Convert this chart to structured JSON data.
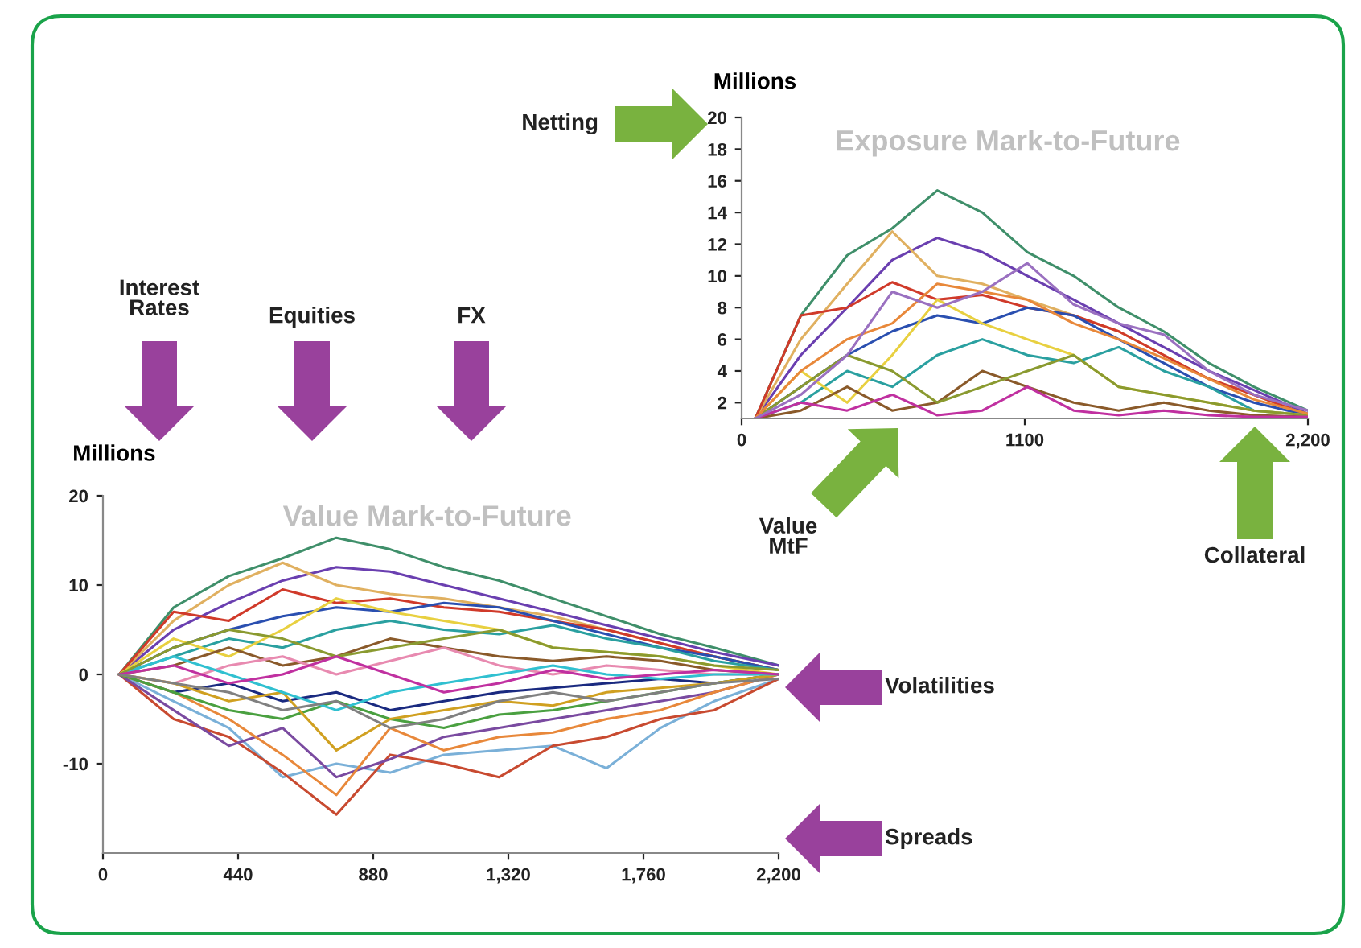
{
  "chart_data": [
    {
      "type": "line",
      "title": "Value Mark-to-Future",
      "ylabel": "Millions",
      "x": [
        53,
        230,
        410,
        585,
        760,
        935,
        1110,
        1290,
        1465,
        1640,
        1815,
        1990,
        2200
      ],
      "xlim": [
        0,
        2200
      ],
      "ylim": [
        -20,
        20
      ],
      "xticks": [
        0,
        440,
        880,
        {
          "value": 1320,
          "label": "1,320"
        },
        {
          "value": 1760,
          "label": "1,760"
        },
        {
          "value": 2200,
          "label": "2,200"
        }
      ],
      "yticks": [
        {
          "value": -10,
          "label": "-10"
        },
        0,
        10,
        20
      ],
      "annotations": [
        "Interest\nRates",
        "Equities",
        "FX",
        "Volatilities",
        "Spreads"
      ],
      "series": [
        {
          "color": "#3f8f6a",
          "values": [
            0,
            7.5,
            11,
            13,
            15.3,
            14,
            12,
            10.5,
            8.5,
            6.5,
            4.5,
            3,
            1
          ]
        },
        {
          "color": "#6a3fb0",
          "values": [
            0,
            5,
            8,
            10.5,
            12,
            11.5,
            10,
            8.5,
            7,
            5.5,
            4,
            2.5,
            1
          ]
        },
        {
          "color": "#e0b060",
          "values": [
            0,
            6,
            10,
            12.5,
            10,
            9,
            8.5,
            7.5,
            6.5,
            5,
            3.5,
            2,
            0.5
          ]
        },
        {
          "color": "#d03a2a",
          "values": [
            0,
            7,
            6,
            9.5,
            8,
            8.5,
            7.5,
            7,
            6,
            5,
            3.5,
            2,
            0.5
          ]
        },
        {
          "color": "#2a4fb0",
          "values": [
            0,
            3,
            5,
            6.5,
            7.5,
            7,
            8,
            7.5,
            6,
            4.5,
            3,
            2,
            0.5
          ]
        },
        {
          "color": "#2aa0a0",
          "values": [
            0,
            2,
            4,
            3,
            5,
            6,
            5,
            4.5,
            5.5,
            4,
            3,
            1.5,
            0.5
          ]
        },
        {
          "color": "#e8d040",
          "values": [
            0,
            4,
            2,
            5,
            8.5,
            7,
            6,
            5,
            3,
            2.5,
            2,
            1,
            0
          ]
        },
        {
          "color": "#8a5a2a",
          "values": [
            0,
            1,
            3,
            1,
            2,
            4,
            3,
            2,
            1.5,
            2,
            1.5,
            0.5,
            0
          ]
        },
        {
          "color": "#e88ab0",
          "values": [
            0,
            -1,
            1,
            2,
            0,
            1.5,
            3,
            1,
            0,
            1,
            0.5,
            0,
            0
          ]
        },
        {
          "color": "#1a2a80",
          "values": [
            0,
            -2,
            -1,
            -3,
            -2,
            -4,
            -3,
            -2,
            -1.5,
            -1,
            -0.5,
            -1,
            0
          ]
        },
        {
          "color": "#7ab0d8",
          "values": [
            0,
            -3,
            -6,
            -11.5,
            -10,
            -11,
            -9,
            -8.5,
            -8,
            -10.5,
            -6,
            -3,
            -0.5
          ]
        },
        {
          "color": "#c84a30",
          "values": [
            0,
            -5,
            -7,
            -11,
            -15.7,
            -9,
            -10,
            -11.5,
            -8,
            -7,
            -5,
            -4,
            -0.5
          ]
        },
        {
          "color": "#7a4aa0",
          "values": [
            0,
            -4,
            -8,
            -6,
            -11.5,
            -9.5,
            -7,
            -6,
            -5,
            -4,
            -3,
            -2,
            0
          ]
        },
        {
          "color": "#e8883a",
          "values": [
            0,
            -2,
            -5,
            -9,
            -13.5,
            -6,
            -8.5,
            -7,
            -6.5,
            -5,
            -4,
            -2,
            0
          ]
        },
        {
          "color": "#4aa040",
          "values": [
            0,
            -2,
            -4,
            -5,
            -3,
            -5,
            -6,
            -4.5,
            -4,
            -3,
            -2,
            -1,
            0
          ]
        },
        {
          "color": "#d0a020",
          "values": [
            0,
            -1,
            -3,
            -2,
            -8.5,
            -5,
            -4,
            -3,
            -3.5,
            -2,
            -1.5,
            -1,
            0
          ]
        },
        {
          "color": "#30c0d0",
          "values": [
            0,
            2,
            0,
            -2,
            -4,
            -2,
            -1,
            0,
            1,
            0,
            -0.5,
            0,
            0
          ]
        },
        {
          "color": "#8a9a30",
          "values": [
            0,
            3,
            5,
            4,
            2,
            3,
            4,
            5,
            3,
            2.5,
            2,
            1,
            0.5
          ]
        },
        {
          "color": "#c030a0",
          "values": [
            0,
            1,
            -1,
            0,
            2,
            0,
            -2,
            -1,
            0.5,
            -0.5,
            0,
            0.5,
            0
          ]
        },
        {
          "color": "#808080",
          "values": [
            0,
            -1,
            -2,
            -4,
            -3,
            -6,
            -5,
            -3,
            -2,
            -3,
            -2,
            -1,
            -0.5
          ]
        }
      ]
    },
    {
      "type": "line",
      "title": "Exposure Mark-to-Future",
      "ylabel": "Millions",
      "x": [
        53,
        230,
        410,
        585,
        760,
        935,
        1110,
        1290,
        1465,
        1640,
        1815,
        1990,
        2200
      ],
      "xlim": [
        0,
        2200
      ],
      "ylim": [
        1,
        20
      ],
      "xticks": [
        0,
        1100,
        {
          "value": 2200,
          "label": "2,200"
        }
      ],
      "yticks": [
        2,
        4,
        6,
        8,
        10,
        12,
        14,
        16,
        18,
        20
      ],
      "annotations": [
        "Netting",
        "Value\nMtF",
        "Collateral"
      ],
      "series": [
        {
          "color": "#3f8f6a",
          "values": [
            1,
            7.5,
            11.3,
            13,
            15.4,
            14,
            11.5,
            10,
            8,
            6.5,
            4.5,
            3,
            1.5
          ]
        },
        {
          "color": "#6a3fb0",
          "values": [
            1,
            5,
            8,
            11,
            12.4,
            11.5,
            10,
            8.5,
            7,
            5.5,
            4,
            2.8,
            1.3
          ]
        },
        {
          "color": "#e0b060",
          "values": [
            1,
            6,
            9.5,
            12.8,
            10,
            9.5,
            8.5,
            7.5,
            6.5,
            5,
            3.5,
            2.5,
            1.2
          ]
        },
        {
          "color": "#d03a2a",
          "values": [
            1,
            7.5,
            8,
            9.6,
            8.5,
            8.8,
            8,
            7.5,
            6.5,
            5,
            3.5,
            2.5,
            1.2
          ]
        },
        {
          "color": "#2a4fb0",
          "values": [
            1,
            3,
            5,
            6.5,
            7.5,
            7,
            8,
            7.5,
            6,
            4.5,
            3,
            2,
            1.2
          ]
        },
        {
          "color": "#2aa0a0",
          "values": [
            1,
            2,
            4,
            3,
            5,
            6,
            5,
            4.5,
            5.5,
            4,
            3,
            1.5,
            1.2
          ]
        },
        {
          "color": "#e8d040",
          "values": [
            1,
            4,
            2,
            5,
            8.5,
            7,
            6,
            5,
            3,
            2.5,
            2,
            1.5,
            1.2
          ]
        },
        {
          "color": "#8a5a2a",
          "values": [
            1,
            1.5,
            3,
            1.5,
            2,
            4,
            3,
            2,
            1.5,
            2,
            1.5,
            1.2,
            1.1
          ]
        },
        {
          "color": "#8a9a30",
          "values": [
            1,
            3,
            5,
            4,
            2,
            3,
            4,
            5,
            3,
            2.5,
            2,
            1.5,
            1.2
          ]
        },
        {
          "color": "#c030a0",
          "values": [
            1,
            2,
            1.5,
            2.5,
            1.2,
            1.5,
            3,
            1.5,
            1.2,
            1.5,
            1.2,
            1.1,
            1.1
          ]
        },
        {
          "color": "#e8883a",
          "values": [
            1,
            4,
            6,
            7,
            9.5,
            9,
            8.5,
            7,
            6,
            4.8,
            3.5,
            2.2,
            1.3
          ]
        },
        {
          "color": "#9a70c0",
          "values": [
            1,
            2.5,
            5,
            9,
            8,
            9,
            10.8,
            8.2,
            7,
            6.3,
            4,
            2.5,
            1.5
          ]
        }
      ]
    }
  ]
}
